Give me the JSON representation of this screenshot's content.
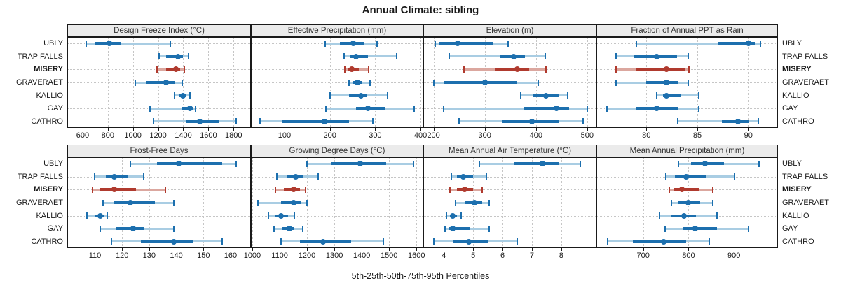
{
  "title": "Annual Climate: sibling",
  "axis_caption": "5th-25th-50th-75th-95th Percentiles",
  "colors": {
    "site_dark": "#1c6fae",
    "site_light": "#a9cde3",
    "highlight_dark": "#b03a2e",
    "highlight_light": "#dba79f",
    "header_bg": "#ebebeb",
    "panel_border": "#1a1a1a",
    "gridline": "#c6c6c6"
  },
  "chart_data": {
    "type": "trellis dot-whisker (percentile intervals)",
    "percentiles": [
      5,
      25,
      50,
      75,
      95
    ],
    "sites": [
      "UBLY",
      "TRAP FALLS",
      "MISERY",
      "GRAVERAET",
      "KALLIO",
      "GAY",
      "CATHRO"
    ],
    "highlight_site": "MISERY",
    "grid": "dotted, both axes",
    "panels": [
      {
        "title": "Design Freeze Index (°C)",
        "row": 0,
        "col": 0,
        "domain": [
          478,
          1938
        ],
        "ticks": [
          600,
          800,
          1000,
          1200,
          1400,
          1600,
          1800
        ],
        "values": [
          [
            630,
            695,
            810,
            900,
            1295
          ],
          [
            1210,
            1265,
            1360,
            1400,
            1440
          ],
          [
            1190,
            1265,
            1340,
            1375,
            1410
          ],
          [
            1020,
            1110,
            1265,
            1330,
            1390
          ],
          [
            1330,
            1365,
            1395,
            1425,
            1455
          ],
          [
            1135,
            1390,
            1455,
            1480,
            1500
          ],
          [
            1165,
            1420,
            1530,
            1690,
            1820
          ]
        ]
      },
      {
        "title": "Effective Precipitation (mm)",
        "row": 0,
        "col": 1,
        "domain": [
          26,
          406
        ],
        "ticks": [
          100,
          200,
          300,
          400
        ],
        "values": [
          [
            190,
            222,
            252,
            275,
            304
          ],
          [
            232,
            246,
            257,
            284,
            348
          ],
          [
            233,
            241,
            248,
            264,
            286
          ],
          [
            242,
            250,
            261,
            270,
            289
          ],
          [
            200,
            243,
            268,
            281,
            327
          ],
          [
            191,
            257,
            284,
            321,
            386
          ],
          [
            46,
            94,
            188,
            243,
            295
          ]
        ]
      },
      {
        "title": "Elevation (m)",
        "row": 0,
        "col": 2,
        "domain": [
          180,
          518
        ],
        "ticks": [
          200,
          300,
          400,
          500
        ],
        "values": [
          [
            203,
            210,
            247,
            317,
            345
          ],
          [
            230,
            331,
            356,
            378,
            418
          ],
          [
            259,
            320,
            363,
            386,
            420
          ],
          [
            201,
            220,
            300,
            362,
            404
          ],
          [
            370,
            393,
            420,
            446,
            462
          ],
          [
            220,
            375,
            440,
            465,
            500
          ],
          [
            250,
            335,
            392,
            445,
            492
          ]
        ]
      },
      {
        "title": "Fraction of Annual PPT as Rain",
        "row": 0,
        "col": 3,
        "domain": [
          75.1,
          92.9
        ],
        "ticks": [
          80,
          85,
          90
        ],
        "values": [
          [
            79,
            87,
            90,
            90.7,
            91.2
          ],
          [
            77,
            78.8,
            81,
            83,
            84.1
          ],
          [
            77,
            79,
            82,
            83.8,
            84.2
          ],
          [
            77,
            80,
            82,
            83.1,
            84.1
          ],
          [
            81,
            81.6,
            82,
            83.4,
            85.1
          ],
          [
            76.1,
            79,
            81,
            83.1,
            85.1
          ],
          [
            83.1,
            87.4,
            89,
            90.1,
            91
          ]
        ]
      },
      {
        "title": "Frost-Free Days",
        "row": 1,
        "col": 0,
        "domain": [
          99.8,
          167.5
        ],
        "ticks": [
          110,
          120,
          130,
          140,
          150,
          160
        ],
        "values": [
          [
            123,
            133,
            141,
            157,
            162
          ],
          [
            110,
            114,
            117,
            122,
            128
          ],
          [
            109,
            112,
            117,
            125,
            136
          ],
          [
            113,
            117,
            123,
            132,
            139
          ],
          [
            107,
            110,
            112,
            113.5,
            114.5
          ],
          [
            112,
            118,
            124,
            128,
            139
          ],
          [
            116,
            127,
            139,
            146,
            157
          ]
        ]
      },
      {
        "title": "Growing Degree Days (°C)",
        "row": 1,
        "col": 1,
        "domain": [
          995,
          1625
        ],
        "ticks": [
          1000,
          1100,
          1200,
          1300,
          1400,
          1500,
          1600
        ],
        "values": [
          [
            1200,
            1290,
            1395,
            1490,
            1590
          ],
          [
            1090,
            1125,
            1160,
            1185,
            1240
          ],
          [
            1085,
            1115,
            1150,
            1175,
            1195
          ],
          [
            1020,
            1105,
            1150,
            1180,
            1200
          ],
          [
            1060,
            1085,
            1105,
            1130,
            1155
          ],
          [
            1080,
            1110,
            1135,
            1155,
            1185
          ],
          [
            1105,
            1175,
            1260,
            1360,
            1480
          ]
        ]
      },
      {
        "title": "Mean Annual Air Temperature (°C)",
        "row": 1,
        "col": 2,
        "domain": [
          3.3,
          9.2
        ],
        "ticks": [
          4,
          5,
          6,
          7,
          8
        ],
        "values": [
          [
            5.2,
            6.4,
            7.35,
            7.9,
            8.65
          ],
          [
            4.25,
            4.45,
            4.65,
            5.0,
            5.45
          ],
          [
            4.2,
            4.45,
            4.7,
            5.0,
            5.3
          ],
          [
            4.4,
            4.7,
            5.05,
            5.3,
            5.55
          ],
          [
            4.1,
            4.2,
            4.3,
            4.45,
            4.6
          ],
          [
            4.05,
            4.15,
            4.3,
            4.9,
            5.55
          ],
          [
            3.65,
            4.3,
            4.85,
            5.5,
            6.5
          ]
        ]
      },
      {
        "title": "Mean Annual Precipitation (mm)",
        "row": 1,
        "col": 3,
        "domain": [
          597,
          997
        ],
        "ticks": [
          700,
          800,
          900
        ],
        "values": [
          [
            778,
            805,
            836,
            878,
            955
          ],
          [
            750,
            770,
            795,
            840,
            902
          ],
          [
            758,
            768,
            785,
            822,
            853
          ],
          [
            762,
            778,
            800,
            826,
            854
          ],
          [
            736,
            760,
            790,
            816,
            862
          ],
          [
            748,
            787,
            815,
            863,
            932
          ],
          [
            622,
            678,
            745,
            795,
            845
          ]
        ]
      }
    ]
  }
}
